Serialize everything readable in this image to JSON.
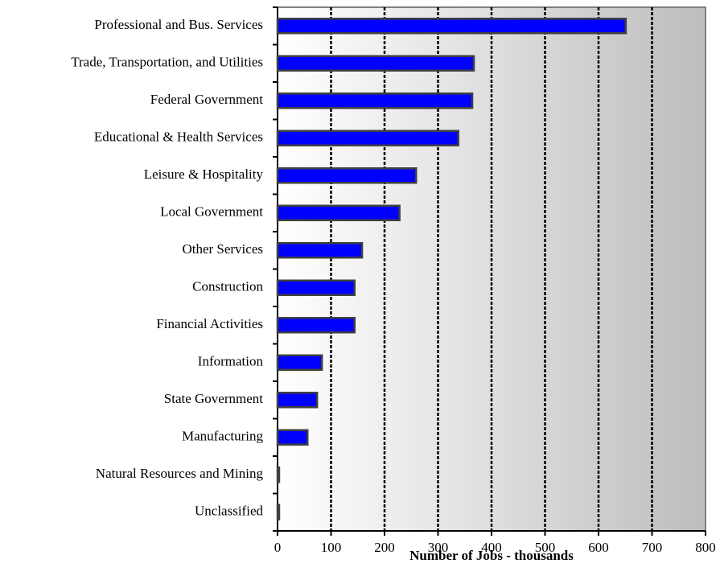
{
  "chart_data": {
    "type": "barh",
    "categories": [
      "Professional and Bus. Services",
      "Trade, Transportation, and Utilities",
      "Federal Government",
      "Educational & Health Services",
      "Leisure & Hospitality",
      "Local Government",
      "Other Services",
      "Construction",
      "Financial Activities",
      "Information",
      "State Government",
      "Manufacturing",
      "Natural Resources and Mining",
      "Unclassified"
    ],
    "values": [
      651,
      367,
      364,
      338,
      259,
      228,
      158,
      144,
      144,
      83,
      74,
      56,
      3,
      3
    ],
    "color": "#0000ff",
    "xlabel": "Number of Jobs - thousands",
    "xlim": [
      0,
      800
    ],
    "xticks": [
      0,
      100,
      200,
      300,
      400,
      500,
      600,
      700,
      800
    ],
    "grid": true
  }
}
